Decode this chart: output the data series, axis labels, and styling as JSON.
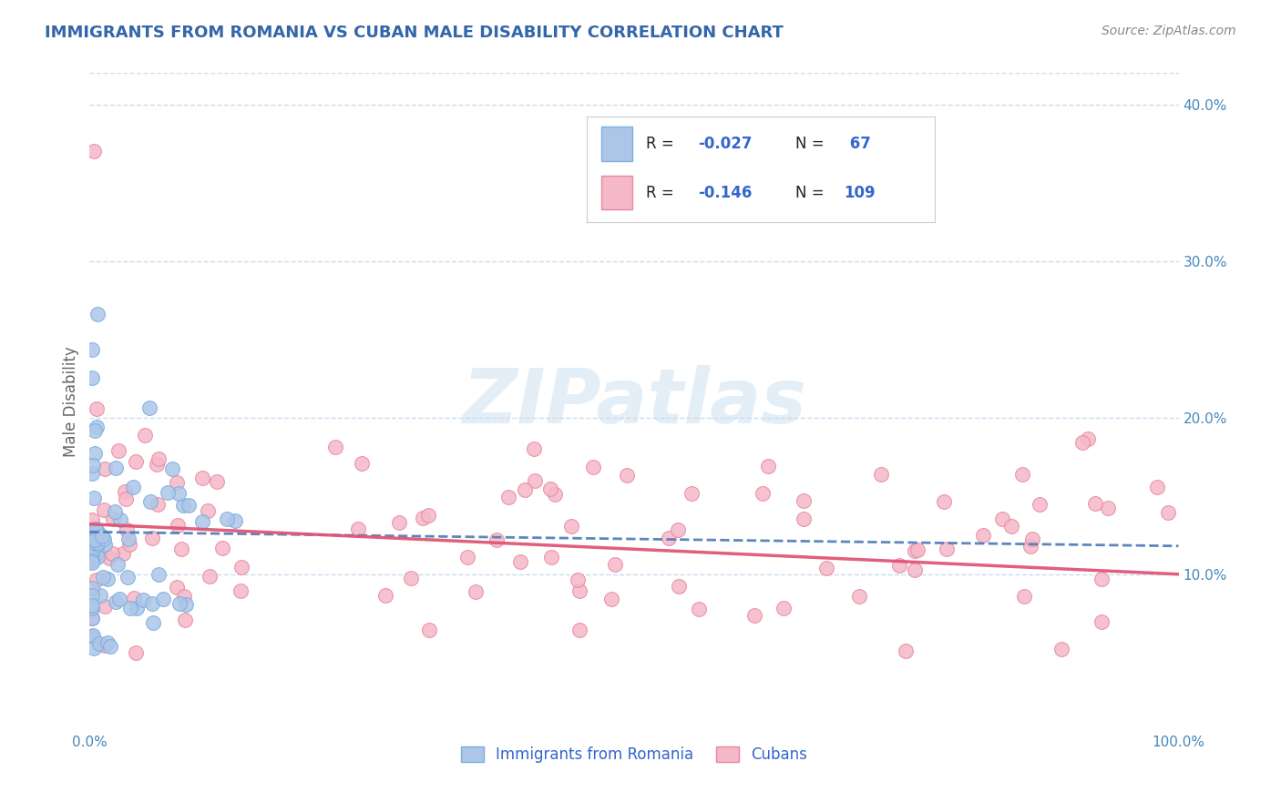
{
  "title": "IMMIGRANTS FROM ROMANIA VS CUBAN MALE DISABILITY CORRELATION CHART",
  "source": "Source: ZipAtlas.com",
  "ylabel": "Male Disability",
  "legend_label1": "Immigrants from Romania",
  "legend_label2": "Cubans",
  "xlim": [
    0.0,
    1.0
  ],
  "ylim": [
    0.0,
    0.42
  ],
  "yticks": [
    0.1,
    0.2,
    0.3,
    0.4
  ],
  "ytick_labels": [
    "10.0%",
    "20.0%",
    "30.0%",
    "40.0%"
  ],
  "xticks": [
    0.0,
    0.25,
    0.5,
    0.75,
    1.0
  ],
  "color_blue_fill": "#adc6e8",
  "color_blue_edge": "#7aaedb",
  "color_blue_line": "#4a7ab5",
  "color_pink_fill": "#f5b8c8",
  "color_pink_edge": "#e888a0",
  "color_pink_line": "#e05575",
  "color_watermark": "#cde0f0",
  "background_color": "#ffffff",
  "grid_color": "#c8ddf0",
  "title_color": "#3366aa",
  "source_color": "#888888",
  "ylabel_color": "#666666",
  "tick_color": "#4488bb",
  "legend_r_color": "#222222",
  "legend_val_color": "#3366cc",
  "legend_n_color": "#222222",
  "legend_nval_color": "#3366cc",
  "romania_seed": 42,
  "cubans_seed": 17,
  "trendline_romania_start_y": 0.127,
  "trendline_romania_end_y": 0.118,
  "trendline_cubans_start_y": 0.132,
  "trendline_cubans_end_y": 0.1
}
